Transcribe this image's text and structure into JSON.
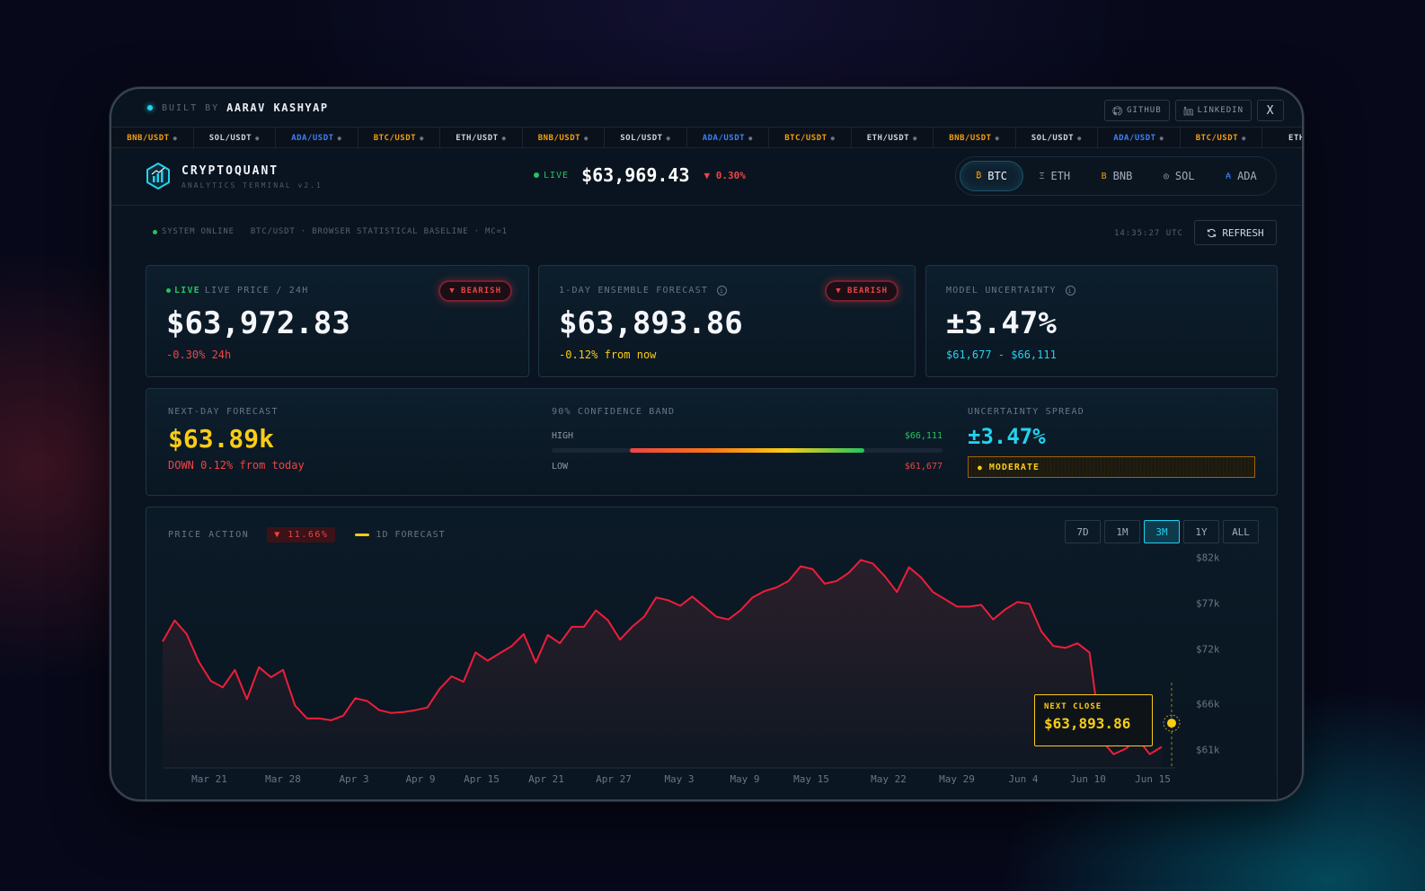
{
  "topbar": {
    "built_by": "BUILT BY",
    "author": "AARAV KASHYAP",
    "github": "GITHUB",
    "linkedin": "LINKEDIN",
    "close": "X"
  },
  "ticker": [
    {
      "pair": "BNB/USDT",
      "color": "#f59e0b"
    },
    {
      "pair": "SOL/USDT",
      "color": "#cbd5e1"
    },
    {
      "pair": "ADA/USDT",
      "color": "#3b82f6"
    },
    {
      "pair": "BTC/USDT",
      "color": "#f59e0b"
    },
    {
      "pair": "ETH/USDT",
      "color": "#cbd5e1"
    },
    {
      "pair": "BNB/USDT",
      "color": "#f59e0b"
    },
    {
      "pair": "SOL/USDT",
      "color": "#cbd5e1"
    },
    {
      "pair": "ADA/USDT",
      "color": "#3b82f6"
    },
    {
      "pair": "BTC/USDT",
      "color": "#f59e0b"
    },
    {
      "pair": "ETH/USDT",
      "color": "#cbd5e1"
    },
    {
      "pair": "BNB/USDT",
      "color": "#f59e0b"
    },
    {
      "pair": "SOL/USDT",
      "color": "#cbd5e1"
    },
    {
      "pair": "ADA/USDT",
      "color": "#3b82f6"
    },
    {
      "pair": "BTC/USDT",
      "color": "#f59e0b"
    },
    {
      "pair": "ETH/",
      "color": "#cbd5e1"
    }
  ],
  "header": {
    "brand": "CRYPTOQUANT",
    "brand_sub": "ANALYTICS TERMINAL v2.1",
    "live": "LIVE",
    "price": "$63,969.43",
    "change": "▼ 0.30%",
    "coins": [
      {
        "icon": "₿",
        "label": "BTC",
        "color": "#f59e0b",
        "active": true
      },
      {
        "icon": "Ξ",
        "label": "ETH",
        "color": "#94a3b8",
        "active": false
      },
      {
        "icon": "B",
        "label": "BNB",
        "color": "#f59e0b",
        "active": false
      },
      {
        "icon": "◎",
        "label": "SOL",
        "color": "#94a3b8",
        "active": false
      },
      {
        "icon": "₳",
        "label": "ADA",
        "color": "#3b82f6",
        "active": false
      }
    ]
  },
  "status": {
    "online": "SYSTEM ONLINE",
    "detail": "BTC/USDT · BROWSER STATISTICAL BASELINE · MC=1",
    "time": "14:35:27 UTC",
    "refresh": "REFRESH"
  },
  "card1": {
    "live": "LIVE",
    "label": "LIVE PRICE / 24H",
    "badge": "▼ BEARISH",
    "value": "$63,972.83",
    "sub": "-0.30% 24h"
  },
  "card2": {
    "label": "1-DAY ENSEMBLE FORECAST",
    "badge": "▼ BEARISH",
    "value": "$63,893.86",
    "sub_pct": "-0.12%",
    "sub_txt": "from now"
  },
  "card3": {
    "label": "MODEL UNCERTAINTY",
    "value": "±3.47%",
    "range": "$61,677 - $66,111"
  },
  "forecast": {
    "label": "NEXT-DAY FORECAST",
    "value": "$63.89k",
    "down": "DOWN 0.12% from today",
    "band_label": "90% CONFIDENCE BAND",
    "high_label": "HIGH",
    "high": "$66,111",
    "low_label": "LOW",
    "low": "$61,677",
    "spread_label": "UNCERTAINTY SPREAD",
    "spread": "±3.47%",
    "level": "MODERATE"
  },
  "chart": {
    "label": "PRICE ACTION",
    "change": "▼ 11.66%",
    "legend": "1D FORECAST",
    "ranges": [
      {
        "label": "7D",
        "active": false
      },
      {
        "label": "1M",
        "active": false
      },
      {
        "label": "3M",
        "active": true
      },
      {
        "label": "1Y",
        "active": false
      },
      {
        "label": "ALL",
        "active": false
      }
    ],
    "tooltip_label": "NEXT CLOSE",
    "tooltip_value": "$63,893.86"
  },
  "chart_data": {
    "type": "line",
    "x_ticks": [
      "Mar 21",
      "Mar 28",
      "Apr 3",
      "Apr 9",
      "Apr 15",
      "Apr 21",
      "Apr 27",
      "May 3",
      "May 9",
      "May 15",
      "May 22",
      "May 29",
      "Jun 4",
      "Jun 10",
      "Jun 15"
    ],
    "y_ticks": [
      "$82k",
      "$77k",
      "$72k",
      "$66k",
      "$61k"
    ],
    "ylim": [
      59000,
      83500
    ],
    "series": [
      {
        "values": [
          72800,
          75100,
          73600,
          70600,
          68500,
          67800,
          69700,
          66500,
          70000,
          68900,
          69700,
          65800,
          64400,
          64400,
          64200,
          64700,
          66600,
          66300,
          65300,
          65000,
          65100,
          65300,
          65600,
          67600,
          69000,
          68400,
          71600,
          70700,
          71500,
          72300,
          73600,
          70500,
          73500,
          72600,
          74400,
          74400,
          76200,
          75100,
          73000,
          74400,
          75500,
          77600,
          77300,
          76700,
          77700,
          76600,
          75500,
          75200,
          76200,
          77600,
          78300,
          78700,
          79400,
          81000,
          80700,
          79100,
          79400,
          80300,
          81700,
          81300,
          79900,
          78200,
          80900,
          79800,
          78200,
          77400,
          76600,
          76600,
          76800,
          75200,
          76300,
          77100,
          76900,
          73900,
          72300,
          72100,
          72600,
          71600,
          62000,
          60500,
          61100,
          62200,
          60500,
          61300
        ]
      }
    ],
    "forecast_value": 63893.86
  }
}
